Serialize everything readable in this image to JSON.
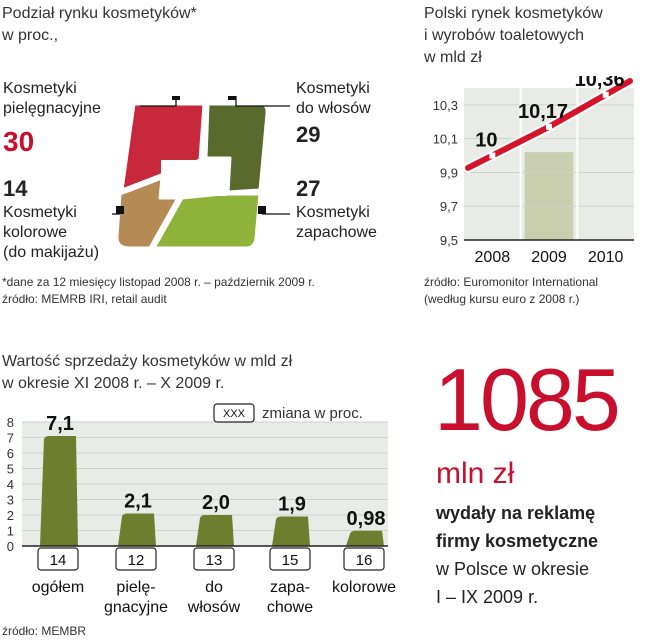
{
  "share": {
    "title_line1": "Podział rynku kosmetyków*",
    "title_line2": "w proc.,",
    "note_line1": "*dane  za 12 miesięcy listopad 2008 r. –  październik 2009 r.",
    "note_line2": "źródło: MEMRB IRI, retail audit",
    "colors": {
      "pielegnacyjne": "#c8283c",
      "wlosow": "#5a6a2c",
      "zapachowe": "#8fb23a",
      "kolorowe": "#b58a55"
    }
  },
  "market": {
    "title_line1": "Polski rynek kosmetyków",
    "title_line2": "i wyrobów toaletowych",
    "title_line3": "w mld zł",
    "source_line1": "źródło: Euromonitor International",
    "source_line2": "(według kursu euro z 2008 r.)"
  },
  "sales": {
    "title_line1": "Wartość sprzedaży kosmetyków w mld zł",
    "title_line2": " w okresie  XI 2008 r.  – X 2009 r.",
    "legend_box": "XXX",
    "legend_text": "zmiana w proc.",
    "source": "źródło: MEMBR"
  },
  "highlight": {
    "number": "1085",
    "unit": "mln zł",
    "line1": "wydały na reklamę",
    "line2": "firmy kosmetyczne",
    "line3": "w Polsce w okresie",
    "line4": "I – IX 2009 r."
  },
  "chart_data": [
    {
      "type": "pie",
      "title": "Podział rynku kosmetyków* w proc.,",
      "segments": [
        {
          "label_line1": "Kosmetyki",
          "label_line2": "pielęgnacyjne",
          "label_line3": "",
          "value": 30,
          "value_label": "30"
        },
        {
          "label_line1": "Kosmetyki",
          "label_line2": "do włosów",
          "label_line3": "",
          "value": 29,
          "value_label": "29"
        },
        {
          "label_line1": "Kosmetyki",
          "label_line2": "zapachowe",
          "label_line3": "",
          "value": 27,
          "value_label": "27"
        },
        {
          "label_line1": "Kosmetyki",
          "label_line2": "kolorowe",
          "label_line3": "(do makijażu)",
          "value": 14,
          "value_label": "14"
        }
      ]
    },
    {
      "type": "line",
      "title": "Polski rynek kosmetyków i wyrobów toaletowych w mld zł",
      "x": [
        "2008",
        "2009",
        "2010"
      ],
      "series": [
        {
          "values": [
            10.0,
            10.17,
            10.36
          ],
          "value_labels": [
            "10",
            "10,17",
            "10,36"
          ]
        }
      ],
      "yticks": [
        {
          "value": 9.5,
          "label": "9,5"
        },
        {
          "value": 9.7,
          "label": "9,7"
        },
        {
          "value": 9.9,
          "label": "9,9"
        },
        {
          "value": 10.1,
          "label": "10,1"
        },
        {
          "value": 10.3,
          "label": "10,3"
        }
      ],
      "ylim": [
        9.5,
        10.4
      ],
      "highlighted_category": "2009",
      "grid": true
    },
    {
      "type": "bar",
      "title": "Wartość sprzedaży kosmetyków w mld zł w okresie XI 2008 r. – X 2009 r.",
      "categories": [
        {
          "line1": "ogółem",
          "line2": ""
        },
        {
          "line1": "pielę-",
          "line2": "gnacyjne"
        },
        {
          "line1": "do",
          "line2": "włosów"
        },
        {
          "line1": "zapa-",
          "line2": "chowe"
        },
        {
          "line1": "kolorowe",
          "line2": ""
        }
      ],
      "values": [
        7.1,
        2.1,
        2.0,
        1.9,
        0.98
      ],
      "value_labels": [
        "7,1",
        "2,1",
        "2,0",
        "1,9",
        "0,98"
      ],
      "change_percent": [
        "14",
        "12",
        "13",
        "15",
        "16"
      ],
      "yticks": [
        "0",
        "1",
        "2",
        "3",
        "4",
        "5",
        "6",
        "7",
        "8"
      ],
      "ylim": [
        0,
        8
      ],
      "grid": true
    }
  ]
}
